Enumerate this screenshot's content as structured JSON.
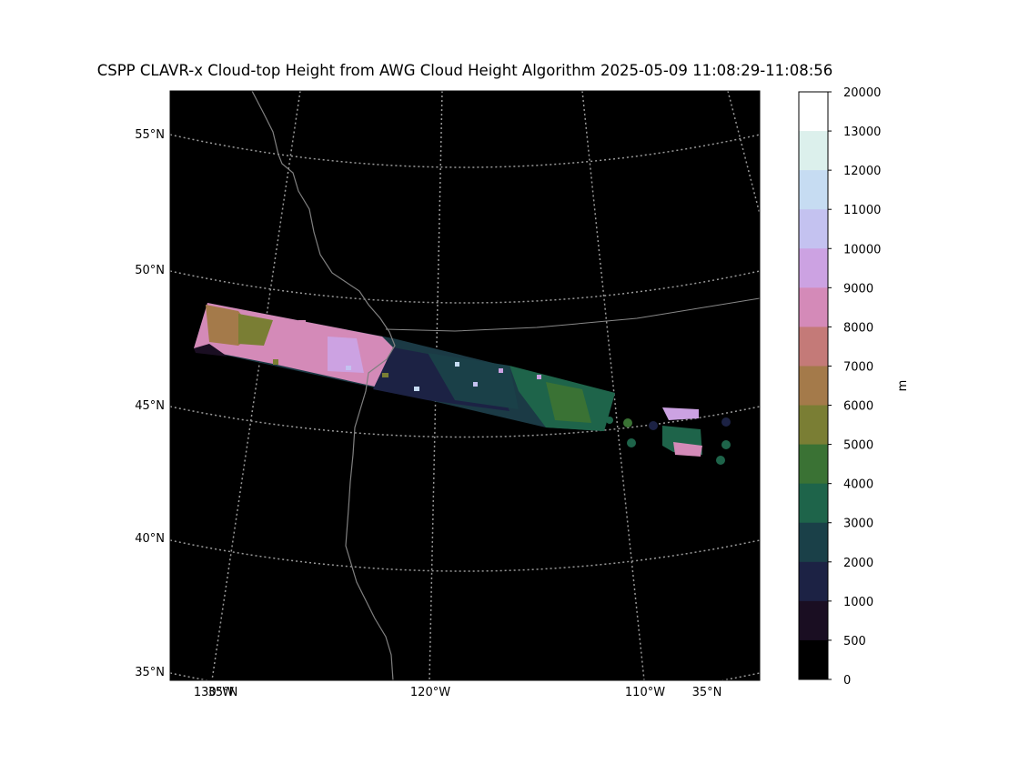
{
  "title": "CSPP CLAVR-x Cloud-top Height from AWG Cloud Height Algorithm 2025-05-09 11:08:29-11:08:56",
  "map": {
    "background_color": "#000000",
    "coastline_color": "#808080",
    "gridline_color": "#999999",
    "lat_labels": [
      "55°N",
      "50°N",
      "45°N",
      "40°N",
      "35°N"
    ],
    "bottom_labels": [
      "130°W",
      "35°N",
      "120°W",
      "110°W",
      "35°N"
    ]
  },
  "colorbar": {
    "unit_label": "m",
    "ticks": [
      "20000",
      "13000",
      "12000",
      "11000",
      "10000",
      "9000",
      "8000",
      "7000",
      "6000",
      "5000",
      "4000",
      "3000",
      "2000",
      "1000",
      "500",
      "0"
    ],
    "colors": [
      "#ffffff",
      "#dcf0ec",
      "#c6dcf2",
      "#c4c2f0",
      "#cca2e2",
      "#d48ab8",
      "#c47a78",
      "#a47a4a",
      "#7a7e34",
      "#3a7234",
      "#1e644a",
      "#1a4048",
      "#1c2244",
      "#1a0e22",
      "#000000"
    ]
  }
}
